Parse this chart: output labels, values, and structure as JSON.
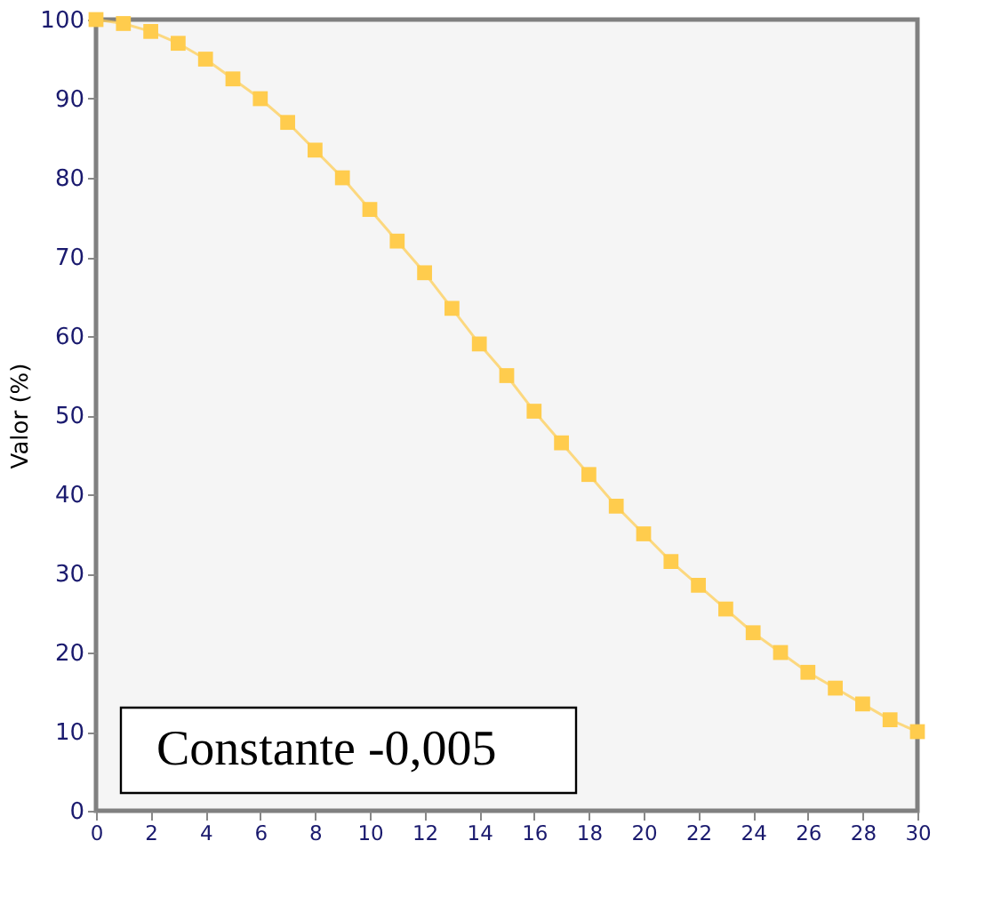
{
  "chart_data": {
    "type": "line",
    "ylabel": "Valor (%)",
    "x": [
      0,
      1,
      2,
      3,
      4,
      5,
      6,
      7,
      8,
      9,
      10,
      11,
      12,
      13,
      14,
      15,
      16,
      17,
      18,
      19,
      20,
      21,
      22,
      23,
      24,
      25,
      26,
      27,
      28,
      29,
      30
    ],
    "series": [
      {
        "color": "#ffcc4d",
        "values": [
          100,
          99.5,
          98.5,
          97,
          95,
          92.5,
          90,
          87,
          83.5,
          80,
          76,
          72,
          68,
          63.5,
          59,
          55,
          50.5,
          46.5,
          42.5,
          38.5,
          35,
          31.5,
          28.5,
          25.5,
          22.5,
          20,
          17.5,
          15.5,
          13.5,
          11.5,
          10
        ]
      }
    ],
    "xlim": [
      0,
      30
    ],
    "xticks": [
      0,
      2,
      4,
      6,
      8,
      10,
      12,
      14,
      16,
      18,
      20,
      22,
      24,
      26,
      28,
      30
    ],
    "ylim": [
      0,
      100
    ],
    "yticks": [
      0,
      10,
      20,
      30,
      40,
      50,
      60,
      70,
      80,
      90,
      100
    ],
    "marker": "square",
    "line_style": "solid",
    "grid": false,
    "annotations": [
      "Constante -0,005"
    ]
  }
}
